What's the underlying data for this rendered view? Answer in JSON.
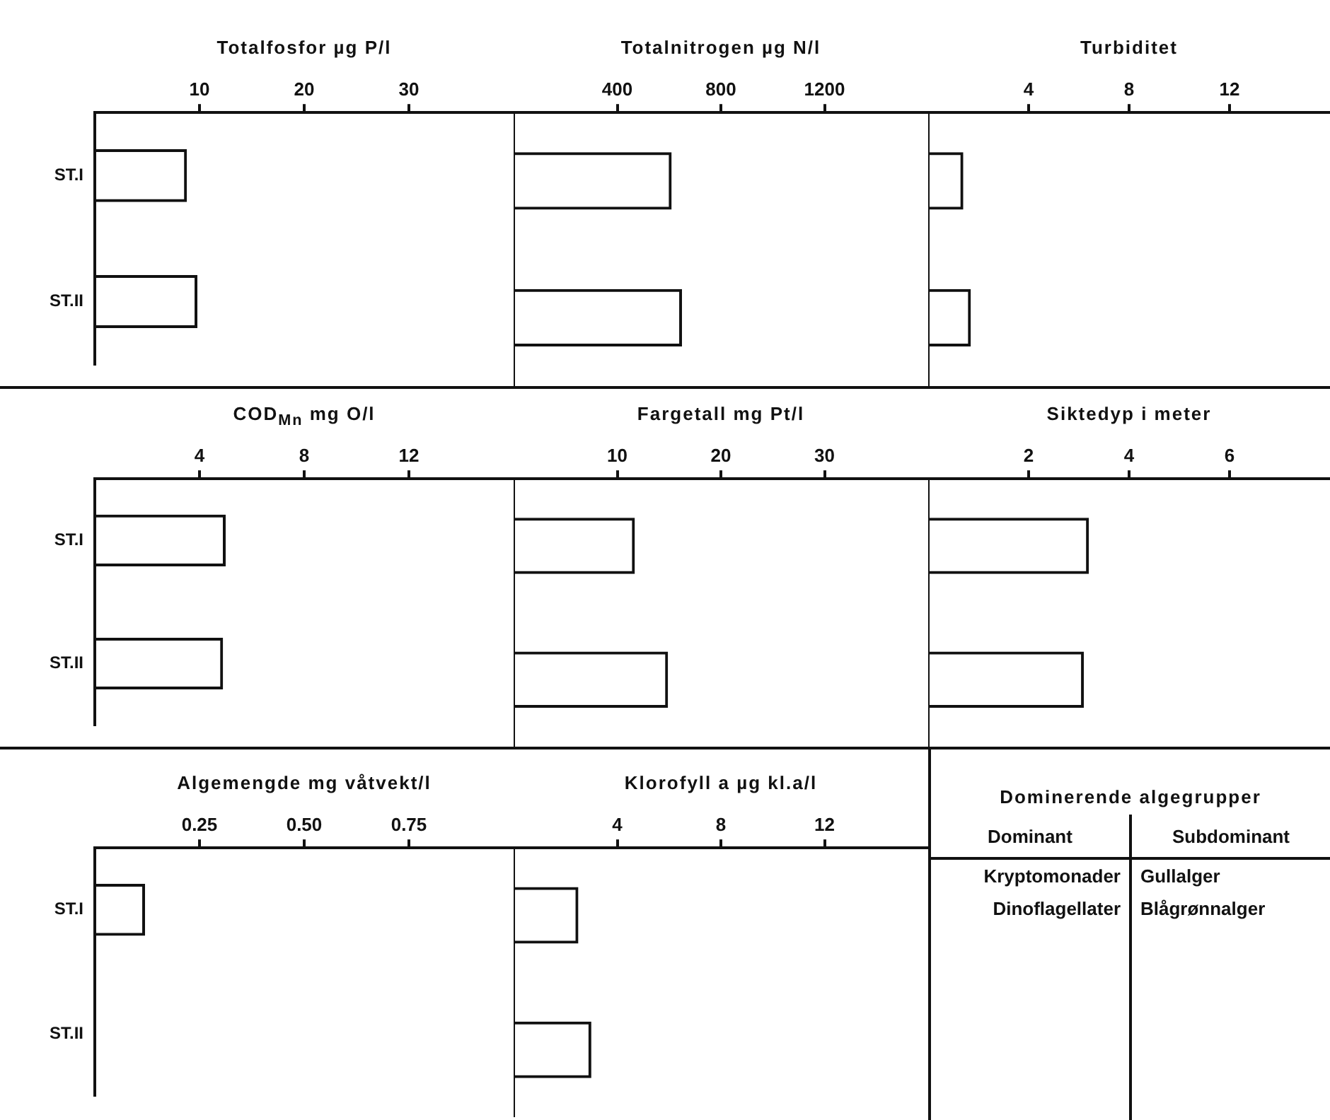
{
  "chart_data": [
    {
      "type": "bar",
      "orientation": "horizontal",
      "xlabel": "Totalfosfor µg P/l",
      "categories": [
        "ST.I",
        "ST.II"
      ],
      "values": [
        8.8,
        9.8
      ],
      "color": "#111111",
      "xlim": [
        0,
        40
      ],
      "xticks": [
        10,
        20,
        30
      ]
    },
    {
      "type": "bar",
      "orientation": "horizontal",
      "xlabel": "Totalnitrogen µg N/l",
      "categories": [
        null,
        null
      ],
      "values": [
        610,
        650
      ],
      "color": "#111111",
      "xlim": [
        0,
        1600
      ],
      "xticks": [
        400,
        800,
        1200
      ],
      "tick_labels": "x"
    },
    {
      "type": "bar",
      "orientation": "horizontal",
      "xlabel": "Turbiditet",
      "categories": [
        null,
        null
      ],
      "values": [
        1.4,
        1.7
      ],
      "color": "#111111",
      "xlim": [
        0,
        16
      ],
      "xticks": [
        4,
        8,
        12
      ],
      "tick_labels": "x"
    },
    {
      "type": "bar",
      "orientation": "horizontal",
      "xlabel": "COD$_{Mn}$ mg O/l",
      "categories": [
        "ST.I",
        "ST.II"
      ],
      "values": [
        5.0,
        4.9
      ],
      "color": "#111111",
      "xlim": [
        0,
        16
      ],
      "xticks": [
        4,
        8,
        12
      ]
    },
    {
      "type": "bar",
      "orientation": "horizontal",
      "xlabel": "Fargetall mg Pt/l",
      "categories": [
        null,
        null
      ],
      "values": [
        11.7,
        14.9
      ],
      "color": "#111111",
      "xlim": [
        0,
        40
      ],
      "xticks": [
        10,
        20,
        30
      ],
      "tick_labels": "x"
    },
    {
      "type": "bar",
      "orientation": "horizontal",
      "xlabel": "Siktedyp i meter",
      "categories": [
        null,
        null
      ],
      "values": [
        3.2,
        3.1
      ],
      "color": "#111111",
      "xlim": [
        0,
        8
      ],
      "xticks": [
        2,
        4,
        6
      ],
      "tick_labels": "x"
    },
    {
      "type": "bar",
      "orientation": "horizontal",
      "xlabel": "Algemengde mg våtvekt/l",
      "categories": [
        "ST.I",
        "ST.II"
      ],
      "values": [
        0.12,
        null
      ],
      "color": "#111111",
      "xlim": [
        0,
        1
      ],
      "xticks": [
        {
          "value": 0.25,
          "label": "0.25"
        },
        {
          "value": 0.5,
          "label": "0.50"
        },
        {
          "value": 0.75,
          "label": "0.75"
        }
      ]
    },
    {
      "type": "bar",
      "orientation": "horizontal",
      "xlabel": "Klorofyll a µg kl.a/l",
      "categories": [
        null,
        null
      ],
      "values": [
        2.5,
        3.0
      ],
      "color": "#111111",
      "xlim": [
        0,
        16
      ],
      "xticks": [
        4,
        8,
        12
      ],
      "tick_labels": "x"
    },
    {
      "type": "other",
      "title": "Dominerende algegrupper",
      "annotations": [
        "Dominant",
        "Subdominant",
        "Kryptomonader",
        "Gullalger",
        "Dinoflagellater",
        "Blågrønnalger"
      ]
    }
  ]
}
